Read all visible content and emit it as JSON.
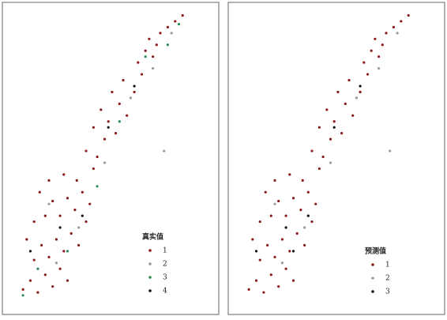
{
  "chart_data": [
    {
      "type": "scatter",
      "legend_title": "真实值",
      "xlim": [
        0,
        100
      ],
      "ylim": [
        0,
        100
      ],
      "series": [
        {
          "name": "1",
          "color": "#8b1a1a",
          "x": [
            6,
            10,
            14,
            18,
            22,
            26,
            30,
            12,
            16,
            20,
            24,
            28,
            32,
            36,
            40,
            8,
            12,
            18,
            22,
            26,
            30,
            34,
            38,
            42,
            15,
            20,
            28,
            35,
            44,
            40,
            46,
            50,
            44,
            52,
            56,
            48,
            58,
            62,
            54,
            60,
            66,
            70,
            68,
            72,
            76,
            74,
            80,
            84,
            88,
            92,
            78
          ],
          "values": [
            5,
            8,
            4,
            10,
            6,
            12,
            8,
            15,
            20,
            16,
            22,
            18,
            24,
            20,
            28,
            22,
            28,
            30,
            35,
            30,
            36,
            32,
            38,
            34,
            38,
            42,
            44,
            42,
            46,
            52,
            50,
            56,
            60,
            62,
            58,
            66,
            68,
            64,
            72,
            76,
            72,
            78,
            82,
            86,
            84,
            90,
            92,
            94,
            96,
            98,
            88
          ]
        },
        {
          "name": "2",
          "color": "#9a9a9a",
          "x": [
            82,
            24,
            36,
            50,
            64,
            20,
            76,
            86
          ],
          "values": [
            52,
            14,
            26,
            48,
            70,
            34,
            80,
            92
          ]
        },
        {
          "name": "3",
          "color": "#2e8b57",
          "x": [
            6,
            14,
            30,
            46,
            58,
            72,
            84,
            90
          ],
          "values": [
            3,
            12,
            18,
            40,
            62,
            84,
            88,
            95
          ]
        },
        {
          "name": "4",
          "color": "#111111",
          "x": [
            10,
            26,
            38,
            52,
            66
          ],
          "values": [
            18,
            26,
            30,
            60,
            74
          ]
        }
      ]
    },
    {
      "type": "scatter",
      "legend_title": "预测值",
      "xlim": [
        0,
        100
      ],
      "ylim": [
        0,
        100
      ],
      "series": [
        {
          "name": "1",
          "color": "#8b1a1a",
          "x": [
            6,
            10,
            14,
            18,
            22,
            26,
            30,
            12,
            16,
            20,
            24,
            28,
            32,
            36,
            40,
            8,
            12,
            18,
            22,
            26,
            30,
            34,
            38,
            42,
            15,
            20,
            28,
            35,
            44,
            40,
            46,
            50,
            44,
            52,
            56,
            48,
            58,
            62,
            54,
            60,
            66,
            70,
            68,
            72,
            76,
            74,
            80,
            84,
            88,
            92,
            78
          ],
          "values": [
            5,
            8,
            4,
            10,
            6,
            12,
            8,
            15,
            20,
            16,
            22,
            18,
            24,
            20,
            28,
            22,
            28,
            30,
            35,
            30,
            36,
            32,
            38,
            34,
            38,
            42,
            44,
            42,
            46,
            52,
            50,
            56,
            60,
            62,
            58,
            66,
            68,
            64,
            72,
            76,
            72,
            78,
            82,
            86,
            84,
            90,
            92,
            94,
            96,
            98,
            88
          ]
        },
        {
          "name": "2",
          "color": "#9a9a9a",
          "x": [
            82,
            24,
            36,
            50,
            64,
            20,
            76,
            86
          ],
          "values": [
            52,
            14,
            26,
            48,
            70,
            34,
            80,
            92
          ]
        },
        {
          "name": "3",
          "color": "#111111",
          "x": [
            10,
            26,
            38,
            52,
            66,
            30
          ],
          "values": [
            18,
            26,
            30,
            60,
            74,
            18
          ]
        }
      ]
    }
  ]
}
